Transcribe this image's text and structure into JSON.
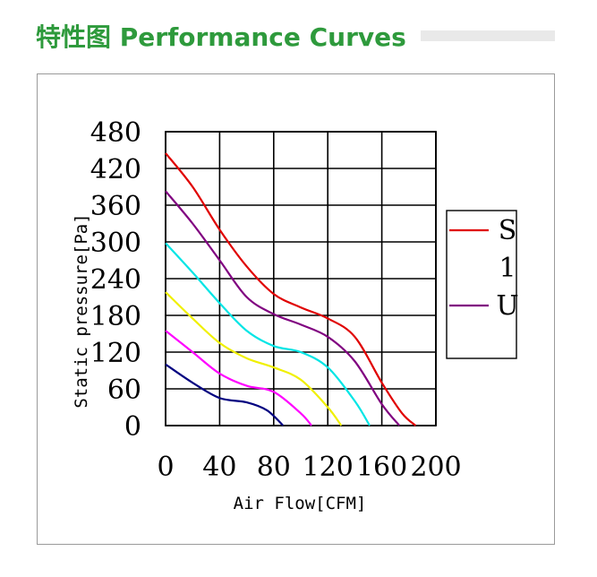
{
  "header": {
    "title": "特性图 Performance Curves"
  },
  "chart_data": {
    "type": "line",
    "title": "",
    "xlabel": "Air Flow[CFM]",
    "ylabel": "Static pressure[Pa]",
    "xlim": [
      0,
      200
    ],
    "ylim": [
      0,
      480
    ],
    "x_ticks": [
      "0",
      "40",
      "80",
      "120",
      "160",
      "200"
    ],
    "y_ticks": [
      "0",
      "60",
      "120",
      "180",
      "240",
      "300",
      "360",
      "420",
      "480"
    ],
    "grid": true,
    "legend_position": "right",
    "legend": [
      {
        "label": "S",
        "color": "#e00000"
      },
      {
        "label": "1",
        "color": ""
      },
      {
        "label": "U",
        "color": "#800080"
      }
    ],
    "series": [
      {
        "color": "#e00000",
        "points": [
          [
            0,
            445
          ],
          [
            20,
            390
          ],
          [
            40,
            320
          ],
          [
            60,
            260
          ],
          [
            80,
            215
          ],
          [
            100,
            193
          ],
          [
            120,
            175
          ],
          [
            140,
            145
          ],
          [
            160,
            70
          ],
          [
            175,
            20
          ],
          [
            185,
            0
          ]
        ]
      },
      {
        "color": "#800080",
        "points": [
          [
            0,
            383
          ],
          [
            20,
            330
          ],
          [
            40,
            270
          ],
          [
            60,
            210
          ],
          [
            80,
            182
          ],
          [
            100,
            165
          ],
          [
            120,
            145
          ],
          [
            140,
            105
          ],
          [
            160,
            35
          ],
          [
            173,
            0
          ]
        ]
      },
      {
        "color": "#00e5e5",
        "points": [
          [
            0,
            298
          ],
          [
            20,
            250
          ],
          [
            40,
            200
          ],
          [
            60,
            155
          ],
          [
            80,
            130
          ],
          [
            100,
            120
          ],
          [
            120,
            95
          ],
          [
            140,
            40
          ],
          [
            151,
            0
          ]
        ]
      },
      {
        "color": "#f0f000",
        "points": [
          [
            0,
            218
          ],
          [
            20,
            175
          ],
          [
            40,
            135
          ],
          [
            60,
            110
          ],
          [
            80,
            95
          ],
          [
            100,
            75
          ],
          [
            120,
            30
          ],
          [
            130,
            0
          ]
        ]
      },
      {
        "color": "#ff00ff",
        "points": [
          [
            0,
            155
          ],
          [
            20,
            120
          ],
          [
            40,
            85
          ],
          [
            60,
            65
          ],
          [
            80,
            55
          ],
          [
            100,
            20
          ],
          [
            108,
            0
          ]
        ]
      },
      {
        "color": "#000080",
        "points": [
          [
            0,
            100
          ],
          [
            20,
            70
          ],
          [
            40,
            45
          ],
          [
            60,
            38
          ],
          [
            75,
            25
          ],
          [
            87,
            0
          ]
        ]
      }
    ]
  }
}
